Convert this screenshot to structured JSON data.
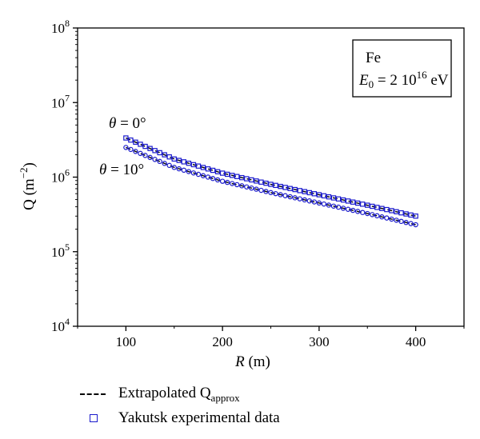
{
  "chart_data": {
    "type": "scatter",
    "x_axis": {
      "label_prefix": "R",
      "label_suffix": " (m)",
      "range": [
        50,
        450
      ],
      "ticks": [
        100,
        200,
        300,
        400
      ],
      "tick_labels": [
        "100",
        "200",
        "300",
        "400"
      ]
    },
    "y_axis": {
      "label": "Q (m",
      "label_sup": "−2",
      "label_close": ")",
      "scale": "log",
      "range": [
        10000,
        100000000
      ],
      "ticks": [
        10000,
        100000,
        1000000,
        10000000,
        100000000
      ],
      "tick_base": "10",
      "tick_exponents": [
        "4",
        "5",
        "6",
        "7",
        "8"
      ]
    },
    "info_box": {
      "line1": "Fe",
      "e_label": "E",
      "e_sub": "0",
      "e_value": " = 2 10",
      "e_sup": "16",
      "e_unit": " eV"
    },
    "annotations": [
      {
        "theta_symbol": "θ",
        "text": " = 0°"
      },
      {
        "theta_symbol": "θ",
        "text": " = 10°"
      }
    ],
    "series": [
      {
        "group": "θ = 0°",
        "kind": "Extrapolated",
        "style": "dashed-line",
        "color": "#000000",
        "x": [
          100,
          150,
          200,
          250,
          300,
          350,
          400
        ],
        "y": [
          3350000,
          1750000,
          1130000,
          800000,
          580000,
          420000,
          300000
        ]
      },
      {
        "group": "θ = 0°",
        "kind": "Yakutsk",
        "style": "square-marker",
        "color": "#1a1acc",
        "x": [
          100,
          150,
          200,
          250,
          300,
          350,
          400
        ],
        "y": [
          3350000,
          1750000,
          1130000,
          800000,
          580000,
          420000,
          300000
        ]
      },
      {
        "group": "θ = 10°",
        "kind": "Extrapolated",
        "style": "dashed-line",
        "color": "#000000",
        "x": [
          100,
          150,
          200,
          250,
          300,
          350,
          400
        ],
        "y": [
          2500000,
          1350000,
          880000,
          620000,
          450000,
          325000,
          230000
        ]
      },
      {
        "group": "θ = 10°",
        "kind": "Yakutsk",
        "style": "circle-marker",
        "color": "#1a1acc",
        "x": [
          100,
          150,
          200,
          250,
          300,
          350,
          400
        ],
        "y": [
          2500000,
          1350000,
          880000,
          620000,
          450000,
          325000,
          230000
        ]
      }
    ],
    "legend": [
      {
        "text": "Extrapolated Q",
        "sub": "approx",
        "style": "dashed-line"
      },
      {
        "text": "Yakutsk experimental data",
        "style": "square-marker"
      }
    ]
  }
}
